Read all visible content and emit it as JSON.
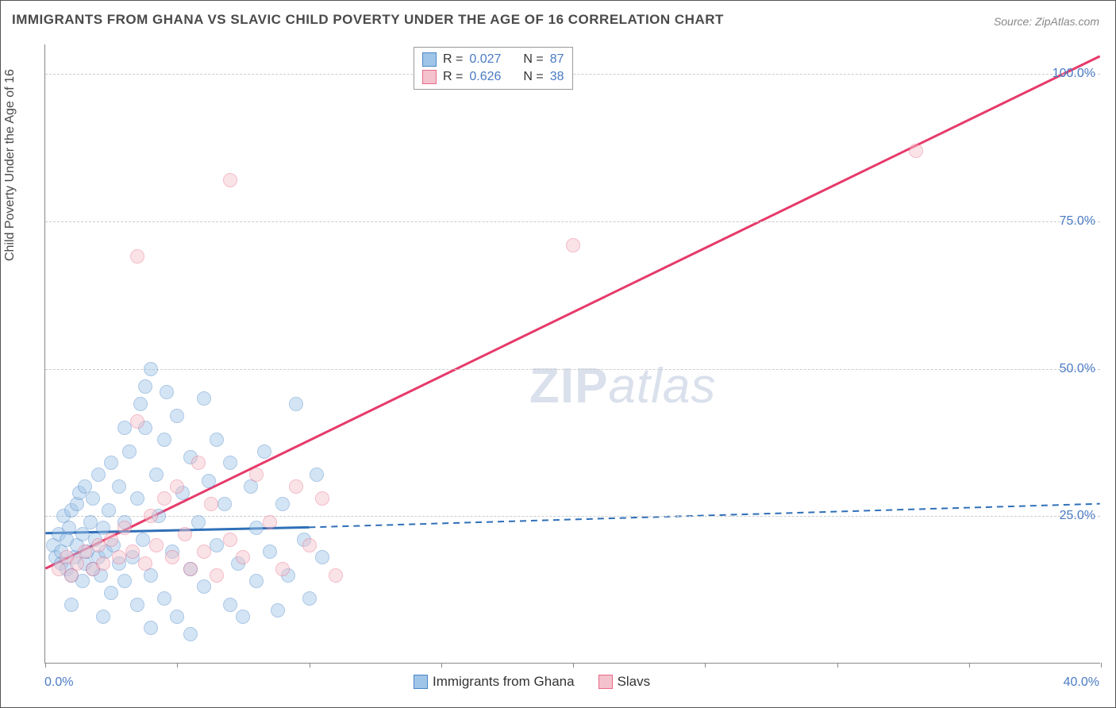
{
  "title": "IMMIGRANTS FROM GHANA VS SLAVIC CHILD POVERTY UNDER THE AGE OF 16 CORRELATION CHART",
  "source": "Source: ZipAtlas.com",
  "watermark_zip": "ZIP",
  "watermark_atlas": "atlas",
  "y_axis_title": "Child Poverty Under the Age of 16",
  "chart": {
    "type": "scatter",
    "xlim": [
      0,
      40
    ],
    "ylim": [
      0,
      105
    ],
    "x_ticks": [
      0,
      5,
      10,
      15,
      20,
      25,
      30,
      35,
      40
    ],
    "y_gridlines": [
      25,
      50,
      75,
      100
    ],
    "y_gridline_labels": [
      "25.0%",
      "50.0%",
      "75.0%",
      "100.0%"
    ],
    "x_label_start": "0.0%",
    "x_label_end": "40.0%",
    "background_color": "#ffffff",
    "grid_color": "#cccccc",
    "axis_color": "#888888",
    "marker_radius": 9,
    "marker_stroke_width": 1.5,
    "marker_opacity": 0.45
  },
  "series_a": {
    "name": "Immigrants from Ghana",
    "fill_color": "#9fc5e8",
    "stroke_color": "#4a86c8",
    "line_color": "#2f6fb8",
    "r_label": "R =",
    "r_value": "0.027",
    "n_label": "N =",
    "n_value": "87",
    "regression": {
      "x1": 0,
      "y1": 22,
      "x2": 10,
      "y2": 23,
      "x2_dash": 40,
      "y2_dash": 27
    },
    "points": [
      [
        0.3,
        20
      ],
      [
        0.4,
        18
      ],
      [
        0.5,
        22
      ],
      [
        0.6,
        17
      ],
      [
        0.6,
        19
      ],
      [
        0.7,
        25
      ],
      [
        0.8,
        16
      ],
      [
        0.8,
        21
      ],
      [
        0.9,
        23
      ],
      [
        1.0,
        15
      ],
      [
        1.0,
        26
      ],
      [
        1.1,
        18
      ],
      [
        1.2,
        20
      ],
      [
        1.2,
        27
      ],
      [
        1.3,
        29
      ],
      [
        1.4,
        14
      ],
      [
        1.4,
        22
      ],
      [
        1.5,
        17
      ],
      [
        1.5,
        30
      ],
      [
        1.6,
        19
      ],
      [
        1.7,
        24
      ],
      [
        1.8,
        16
      ],
      [
        1.8,
        28
      ],
      [
        1.9,
        21
      ],
      [
        2.0,
        18
      ],
      [
        2.0,
        32
      ],
      [
        2.1,
        15
      ],
      [
        2.2,
        23
      ],
      [
        2.3,
        19
      ],
      [
        2.4,
        26
      ],
      [
        2.5,
        12
      ],
      [
        2.5,
        34
      ],
      [
        2.6,
        20
      ],
      [
        2.8,
        17
      ],
      [
        2.8,
        30
      ],
      [
        3.0,
        14
      ],
      [
        3.0,
        24
      ],
      [
        3.2,
        36
      ],
      [
        3.3,
        18
      ],
      [
        3.5,
        10
      ],
      [
        3.5,
        28
      ],
      [
        3.6,
        44
      ],
      [
        3.7,
        21
      ],
      [
        3.8,
        40
      ],
      [
        3.8,
        47
      ],
      [
        4.0,
        15
      ],
      [
        4.0,
        50
      ],
      [
        4.2,
        32
      ],
      [
        4.3,
        25
      ],
      [
        4.5,
        11
      ],
      [
        4.5,
        38
      ],
      [
        4.6,
        46
      ],
      [
        4.8,
        19
      ],
      [
        5.0,
        8
      ],
      [
        5.0,
        42
      ],
      [
        5.2,
        29
      ],
      [
        5.5,
        35
      ],
      [
        5.5,
        16
      ],
      [
        5.8,
        24
      ],
      [
        6.0,
        45
      ],
      [
        6.0,
        13
      ],
      [
        6.2,
        31
      ],
      [
        6.5,
        20
      ],
      [
        6.5,
        38
      ],
      [
        6.8,
        27
      ],
      [
        7.0,
        10
      ],
      [
        7.0,
        34
      ],
      [
        7.3,
        17
      ],
      [
        7.5,
        8
      ],
      [
        7.8,
        30
      ],
      [
        8.0,
        23
      ],
      [
        8.0,
        14
      ],
      [
        8.3,
        36
      ],
      [
        8.5,
        19
      ],
      [
        8.8,
        9
      ],
      [
        9.0,
        27
      ],
      [
        9.2,
        15
      ],
      [
        9.5,
        44
      ],
      [
        9.8,
        21
      ],
      [
        10.0,
        11
      ],
      [
        10.3,
        32
      ],
      [
        10.5,
        18
      ],
      [
        4.0,
        6
      ],
      [
        5.5,
        5
      ],
      [
        3.0,
        40
      ],
      [
        2.2,
        8
      ],
      [
        1.0,
        10
      ]
    ]
  },
  "series_b": {
    "name": "Slavs",
    "fill_color": "#f4c2cc",
    "stroke_color": "#e86a8a",
    "line_color": "#e63a6a",
    "r_label": "R =",
    "r_value": "0.626",
    "n_label": "N =",
    "n_value": "38",
    "regression": {
      "x1": 0,
      "y1": 16,
      "x2": 40,
      "y2": 103
    },
    "points": [
      [
        0.5,
        16
      ],
      [
        0.8,
        18
      ],
      [
        1.0,
        15
      ],
      [
        1.2,
        17
      ],
      [
        1.5,
        19
      ],
      [
        1.8,
        16
      ],
      [
        2.0,
        20
      ],
      [
        2.2,
        17
      ],
      [
        2.5,
        21
      ],
      [
        2.8,
        18
      ],
      [
        3.0,
        23
      ],
      [
        3.3,
        19
      ],
      [
        3.5,
        41
      ],
      [
        3.8,
        17
      ],
      [
        4.0,
        25
      ],
      [
        4.2,
        20
      ],
      [
        4.5,
        28
      ],
      [
        4.8,
        18
      ],
      [
        5.0,
        30
      ],
      [
        5.3,
        22
      ],
      [
        5.5,
        16
      ],
      [
        5.8,
        34
      ],
      [
        6.0,
        19
      ],
      [
        6.3,
        27
      ],
      [
        6.5,
        15
      ],
      [
        7.0,
        21
      ],
      [
        7.0,
        82
      ],
      [
        7.5,
        18
      ],
      [
        8.0,
        32
      ],
      [
        8.5,
        24
      ],
      [
        9.0,
        16
      ],
      [
        9.5,
        30
      ],
      [
        10.0,
        20
      ],
      [
        10.5,
        28
      ],
      [
        3.5,
        69
      ],
      [
        11.0,
        15
      ],
      [
        20.0,
        71
      ],
      [
        33.0,
        87
      ]
    ]
  },
  "legend_bottom": {
    "item_a": "Immigrants from Ghana",
    "item_b": "Slavs"
  }
}
